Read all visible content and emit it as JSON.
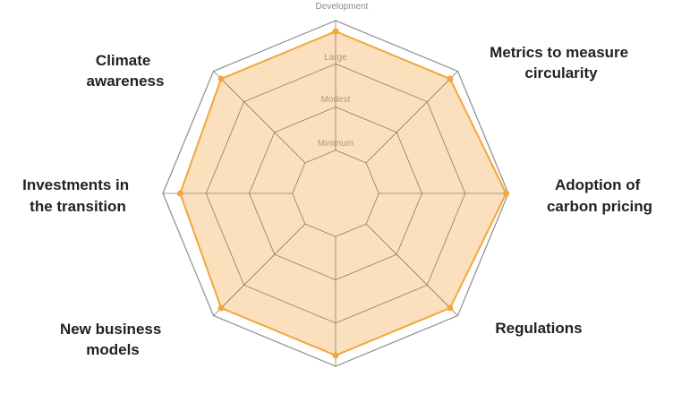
{
  "chart_data": {
    "type": "radar",
    "axis_title": "Development",
    "levels": [
      "Minimum",
      "Modest",
      "Large"
    ],
    "range": [
      0,
      4
    ],
    "categories": [
      [
        "Development"
      ],
      [
        "Metrics to measure",
        "circularity"
      ],
      [
        "Adoption of",
        "carbon pricing"
      ],
      [
        "Regulations"
      ],
      [
        ""
      ],
      [
        "New business",
        "models"
      ],
      [
        "Investments in",
        "the transition"
      ],
      [
        "Climate",
        "awareness"
      ]
    ],
    "series": [
      {
        "values": [
          3.75,
          3.75,
          3.95,
          3.75,
          3.75,
          3.75,
          3.6,
          3.75
        ]
      }
    ],
    "colors": {
      "series": "#f2a63b",
      "fill": "#fae0bd",
      "grid": "#5a5a5a",
      "outer": "#8c8c8c"
    }
  }
}
